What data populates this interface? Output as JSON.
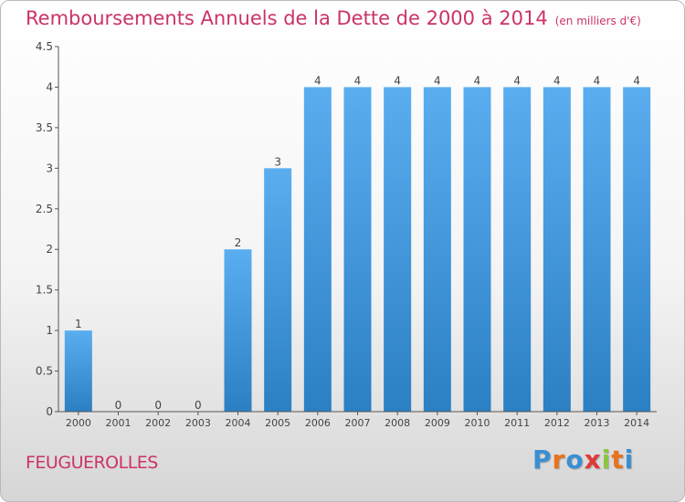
{
  "header": {
    "title": "Remboursements Annuels de la Dette de 2000 à 2014",
    "unit": "(en milliers d'€)"
  },
  "commune": "FEUGUEROLLES",
  "logo": {
    "letters": [
      "P",
      "r",
      "o",
      "x",
      "i",
      "t",
      "i"
    ],
    "colors": [
      "#3a8fd4",
      "#e8731c",
      "#3a8fd4",
      "#e03a3a",
      "#8cc63f",
      "#e8731c",
      "#3a8fd4"
    ]
  },
  "colors": {
    "bar_top": "#5aaef0",
    "bar_bottom": "#2b7fc3",
    "axis": "#555555"
  },
  "chart_data": {
    "type": "bar",
    "categories": [
      "2000",
      "2001",
      "2002",
      "2003",
      "2004",
      "2005",
      "2006",
      "2007",
      "2008",
      "2009",
      "2010",
      "2011",
      "2012",
      "2013",
      "2014"
    ],
    "values": [
      1,
      0,
      0,
      0,
      2,
      3,
      4,
      4,
      4,
      4,
      4,
      4,
      4,
      4,
      4
    ],
    "data_labels": [
      "1",
      "0",
      "0",
      "0",
      "2",
      "3",
      "4",
      "4",
      "4",
      "4",
      "4",
      "4",
      "4",
      "4",
      "4"
    ],
    "yticks": [
      0,
      0.5,
      1,
      1.5,
      2,
      2.5,
      3,
      3.5,
      4,
      4.5
    ],
    "ytick_labels": [
      "0",
      "0.5",
      "1",
      "1.5",
      "2",
      "2.5",
      "3",
      "3.5",
      "4",
      "4.5"
    ],
    "ylim": [
      0,
      4.5
    ],
    "grid": false,
    "legend": "none"
  }
}
